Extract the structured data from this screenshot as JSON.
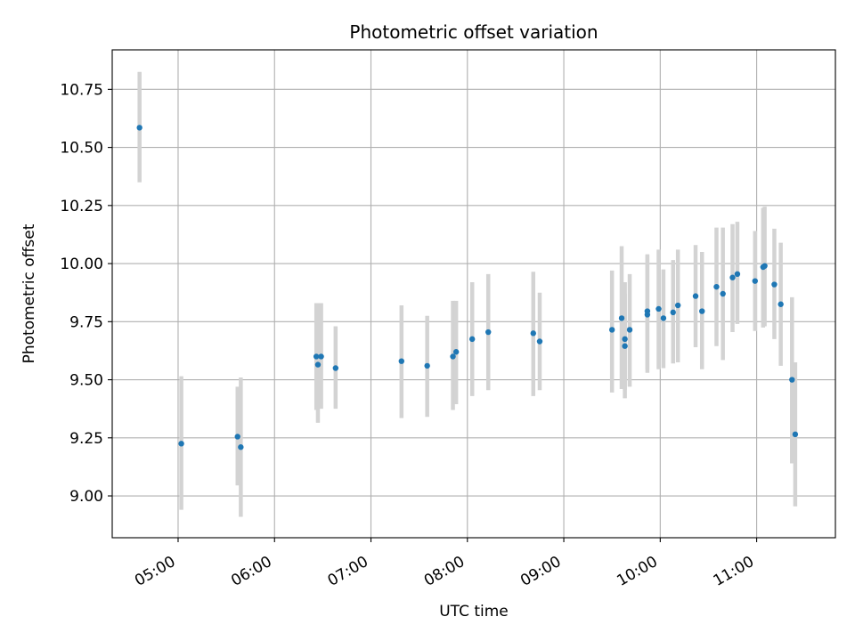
{
  "chart_data": {
    "type": "scatter",
    "title": "Photometric offset variation",
    "xlabel": "UTC time",
    "ylabel": "Photometric offset",
    "x_axis_type": "time",
    "xlim": [
      "04:19",
      "11:49"
    ],
    "ylim": [
      8.82,
      10.92
    ],
    "xticks": [
      "05:00",
      "06:00",
      "07:00",
      "08:00",
      "09:00",
      "10:00",
      "11:00"
    ],
    "yticks": [
      "9.00",
      "9.25",
      "9.50",
      "9.75",
      "10.00",
      "10.25",
      "10.50",
      "10.75"
    ],
    "grid": true,
    "marker_color": "#1f77b4",
    "errorbar_color": "#d3d3d3",
    "series": [
      {
        "points": [
          {
            "x": "04:36",
            "y": 10.585,
            "lo": 10.35,
            "hi": 10.825
          },
          {
            "x": "05:02",
            "y": 9.225,
            "lo": 8.94,
            "hi": 9.515
          },
          {
            "x": "05:37",
            "y": 9.255,
            "lo": 9.045,
            "hi": 9.47
          },
          {
            "x": "05:39",
            "y": 9.21,
            "lo": 8.91,
            "hi": 9.51
          },
          {
            "x": "06:26",
            "y": 9.6,
            "lo": 9.37,
            "hi": 9.83
          },
          {
            "x": "06:27",
            "y": 9.565,
            "lo": 9.315,
            "hi": 9.83
          },
          {
            "x": "06:29",
            "y": 9.6,
            "lo": 9.375,
            "hi": 9.83
          },
          {
            "x": "06:38",
            "y": 9.55,
            "lo": 9.375,
            "hi": 9.73
          },
          {
            "x": "07:19",
            "y": 9.58,
            "lo": 9.335,
            "hi": 9.82
          },
          {
            "x": "07:35",
            "y": 9.56,
            "lo": 9.34,
            "hi": 9.775
          },
          {
            "x": "07:51",
            "y": 9.6,
            "lo": 9.37,
            "hi": 9.84
          },
          {
            "x": "07:53",
            "y": 9.62,
            "lo": 9.395,
            "hi": 9.84
          },
          {
            "x": "08:03",
            "y": 9.675,
            "lo": 9.43,
            "hi": 9.92
          },
          {
            "x": "08:13",
            "y": 9.705,
            "lo": 9.455,
            "hi": 9.955
          },
          {
            "x": "08:41",
            "y": 9.7,
            "lo": 9.43,
            "hi": 9.965
          },
          {
            "x": "08:45",
            "y": 9.665,
            "lo": 9.455,
            "hi": 9.875
          },
          {
            "x": "09:30",
            "y": 9.715,
            "lo": 9.445,
            "hi": 9.97
          },
          {
            "x": "09:36",
            "y": 9.765,
            "lo": 9.46,
            "hi": 10.075
          },
          {
            "x": "09:38",
            "y": 9.675,
            "lo": 9.455,
            "hi": 9.92
          },
          {
            "x": "09:38",
            "y": 9.645,
            "lo": 9.42,
            "hi": 9.87
          },
          {
            "x": "09:41",
            "y": 9.715,
            "lo": 9.47,
            "hi": 9.955
          },
          {
            "x": "09:52",
            "y": 9.795,
            "lo": 9.545,
            "hi": 10.04
          },
          {
            "x": "09:52",
            "y": 9.78,
            "lo": 9.53,
            "hi": 10.035
          },
          {
            "x": "09:59",
            "y": 9.805,
            "lo": 9.545,
            "hi": 10.06
          },
          {
            "x": "10:02",
            "y": 9.765,
            "lo": 9.55,
            "hi": 9.975
          },
          {
            "x": "10:08",
            "y": 9.79,
            "lo": 9.57,
            "hi": 10.015
          },
          {
            "x": "10:11",
            "y": 9.82,
            "lo": 9.575,
            "hi": 10.06
          },
          {
            "x": "10:22",
            "y": 9.86,
            "lo": 9.64,
            "hi": 10.08
          },
          {
            "x": "10:26",
            "y": 9.795,
            "lo": 9.545,
            "hi": 10.05
          },
          {
            "x": "10:35",
            "y": 9.9,
            "lo": 9.645,
            "hi": 10.155
          },
          {
            "x": "10:39",
            "y": 9.87,
            "lo": 9.585,
            "hi": 10.155
          },
          {
            "x": "10:45",
            "y": 9.94,
            "lo": 9.705,
            "hi": 10.17
          },
          {
            "x": "10:48",
            "y": 9.955,
            "lo": 9.74,
            "hi": 10.18
          },
          {
            "x": "10:59",
            "y": 9.925,
            "lo": 9.71,
            "hi": 10.14
          },
          {
            "x": "11:04",
            "y": 9.985,
            "lo": 9.725,
            "hi": 10.24
          },
          {
            "x": "11:05",
            "y": 9.99,
            "lo": 9.73,
            "hi": 10.245
          },
          {
            "x": "11:11",
            "y": 9.91,
            "lo": 9.675,
            "hi": 10.15
          },
          {
            "x": "11:15",
            "y": 9.825,
            "lo": 9.56,
            "hi": 10.09
          },
          {
            "x": "11:22",
            "y": 9.5,
            "lo": 9.14,
            "hi": 9.855
          },
          {
            "x": "11:24",
            "y": 9.265,
            "lo": 8.955,
            "hi": 9.575
          }
        ]
      }
    ]
  }
}
